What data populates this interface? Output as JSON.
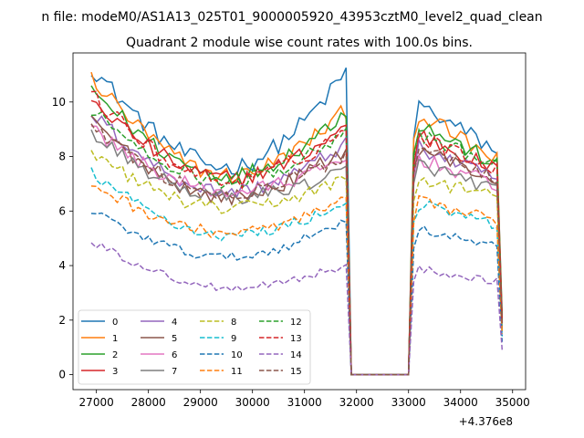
{
  "figure": {
    "suptitle": "n file: modeM0/AS1A13_025T01_9000005920_43953cztM0_level2_quad_clean",
    "offset_label": "+4.376e8"
  },
  "chart_data": {
    "type": "line",
    "title": "Quadrant 2 module wise count rates with 100.0s bins.",
    "xlabel": "",
    "ylabel": "",
    "xlim": [
      26550,
      35250
    ],
    "ylim": [
      -0.55,
      11.8
    ],
    "x_offset": 437600000,
    "xticks": [
      27000,
      28000,
      29000,
      30000,
      31000,
      32000,
      33000,
      34000,
      35000
    ],
    "xtick_labels": [
      "27000",
      "28000",
      "29000",
      "30000",
      "31000",
      "32000",
      "33000",
      "34000",
      "35000"
    ],
    "yticks": [
      0,
      2,
      4,
      6,
      8,
      10
    ],
    "ytick_labels": [
      "0",
      "2",
      "4",
      "6",
      "8",
      "10"
    ],
    "grid": false,
    "legend_position": "lower-left",
    "legend_columns": 4,
    "gap": {
      "from": 31900,
      "to": 33000
    },
    "segment_a": {
      "x_start": 26900,
      "x_end": 31800,
      "step": 100
    },
    "segment_b": {
      "x_start": 33100,
      "x_end": 34800,
      "step": 100
    },
    "series": [
      {
        "name": "0",
        "color": "#1f77b4",
        "dash": "solid",
        "start": 11.3,
        "min": 7.6,
        "end_a": 11.1,
        "b_peak": 10.0,
        "b_end": 8.1,
        "last": 2.2
      },
      {
        "name": "1",
        "color": "#ff7f0e",
        "dash": "solid",
        "start": 10.9,
        "min": 7.3,
        "end_a": 9.7,
        "b_peak": 9.7,
        "b_end": 7.7,
        "last": 2.1
      },
      {
        "name": "2",
        "color": "#2ca02c",
        "dash": "solid",
        "start": 10.5,
        "min": 7.3,
        "end_a": 9.7,
        "b_peak": 9.3,
        "b_end": 7.6,
        "last": 2.0
      },
      {
        "name": "3",
        "color": "#d62728",
        "dash": "solid",
        "start": 10.1,
        "min": 7.2,
        "end_a": 9.1,
        "b_peak": 8.9,
        "b_end": 7.4,
        "last": 1.9
      },
      {
        "name": "4",
        "color": "#9467bd",
        "dash": "solid",
        "start": 9.6,
        "min": 6.7,
        "end_a": 8.5,
        "b_peak": 8.4,
        "b_end": 7.1,
        "last": 1.8
      },
      {
        "name": "5",
        "color": "#8c564b",
        "dash": "solid",
        "start": 9.3,
        "min": 6.5,
        "end_a": 8.3,
        "b_peak": 8.4,
        "b_end": 7.0,
        "last": 1.8
      },
      {
        "name": "6",
        "color": "#e377c2",
        "dash": "solid",
        "start": 9.0,
        "min": 6.7,
        "end_a": 7.9,
        "b_peak": 8.0,
        "b_end": 6.9,
        "last": 1.7
      },
      {
        "name": "7",
        "color": "#7f7f7f",
        "dash": "solid",
        "start": 8.8,
        "min": 6.5,
        "end_a": 7.5,
        "b_peak": 7.8,
        "b_end": 6.7,
        "last": 1.7
      },
      {
        "name": "8",
        "color": "#bcbd22",
        "dash": "dashed",
        "start": 8.1,
        "min": 6.1,
        "end_a": 7.2,
        "b_peak": 7.2,
        "b_end": 6.5,
        "last": 1.6
      },
      {
        "name": "9",
        "color": "#17becf",
        "dash": "dashed",
        "start": 7.4,
        "min": 5.1,
        "end_a": 6.3,
        "b_peak": 6.3,
        "b_end": 5.4,
        "last": 1.4
      },
      {
        "name": "10",
        "color": "#1f77b4",
        "dash": "dashed",
        "start": 6.0,
        "min": 4.3,
        "end_a": 5.7,
        "b_peak": 5.4,
        "b_end": 4.6,
        "last": 1.2
      },
      {
        "name": "11",
        "color": "#ff7f0e",
        "dash": "dashed",
        "start": 7.0,
        "min": 5.2,
        "end_a": 6.4,
        "b_peak": 6.4,
        "b_end": 5.6,
        "last": 1.5
      },
      {
        "name": "12",
        "color": "#2ca02c",
        "dash": "dashed",
        "start": 9.8,
        "min": 7.1,
        "end_a": 9.0,
        "b_peak": 8.8,
        "b_end": 7.6,
        "last": 1.9
      },
      {
        "name": "13",
        "color": "#d62728",
        "dash": "dashed",
        "start": 10.3,
        "min": 7.1,
        "end_a": 9.0,
        "b_peak": 8.8,
        "b_end": 7.5,
        "last": 1.9
      },
      {
        "name": "14",
        "color": "#9467bd",
        "dash": "dashed",
        "start": 4.9,
        "min": 3.2,
        "end_a": 4.0,
        "b_peak": 3.9,
        "b_end": 3.4,
        "last": 0.9
      },
      {
        "name": "15",
        "color": "#8c564b",
        "dash": "dashed",
        "start": 9.2,
        "min": 6.6,
        "end_a": 8.1,
        "b_peak": 8.5,
        "b_end": 7.2,
        "last": 1.8
      }
    ]
  }
}
